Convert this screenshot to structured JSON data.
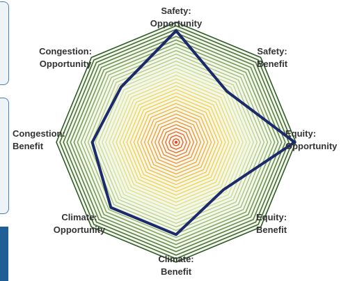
{
  "chart_data": {
    "type": "radar",
    "title": "",
    "axes": [
      {
        "name": "safety-opportunity",
        "lines": [
          "Safety:",
          "Opportunity"
        ]
      },
      {
        "name": "safety-benefit",
        "lines": [
          "Safety:",
          "Benefit"
        ]
      },
      {
        "name": "equity-opportunity",
        "lines": [
          "Equity:",
          "Opportunity"
        ]
      },
      {
        "name": "equity-benefit",
        "lines": [
          "Equity:",
          "Benefit"
        ]
      },
      {
        "name": "climate-benefit",
        "lines": [
          "Climate:",
          "Benefit"
        ]
      },
      {
        "name": "climate-opportunity",
        "lines": [
          "Climate:",
          "Opportunity"
        ]
      },
      {
        "name": "congestion-benefit",
        "lines": [
          "Congestion:",
          "Benefit"
        ]
      },
      {
        "name": "congestion-opportunity",
        "lines": [
          "Congestion:",
          "Opportunity"
        ]
      }
    ],
    "range": [
      0,
      1
    ],
    "series": [
      {
        "values": [
          0.93,
          0.6,
          0.99,
          0.56,
          0.77,
          0.77,
          0.7,
          0.65
        ]
      }
    ],
    "colors": {
      "series_line": "#1b2a6b",
      "ring_gradient": [
        "#e8401a",
        "#f29a2e",
        "#f6d23a",
        "#d9e59a",
        "#8fb168",
        "#2f5b2a"
      ],
      "background": "#ffffff"
    },
    "grid": "octagon-rings"
  }
}
